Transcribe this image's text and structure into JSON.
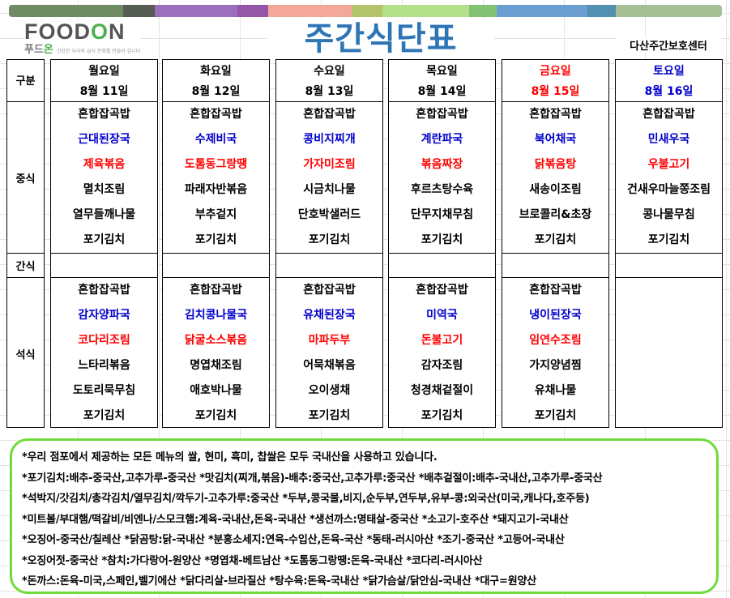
{
  "color_bar": [
    "#6e8b63",
    "#555d52",
    "#9b6fbd",
    "#9457a7",
    "#f4a89a",
    "#b4c46a",
    "#b3e08a",
    "#82c274",
    "#6b9fd1",
    "#538fb0",
    "#a7bf94"
  ],
  "logo": {
    "en_left": "FOOD",
    "en_o": "O",
    "en_right": "N",
    "ko_left": "푸드",
    "ko_right": "온",
    "tagline": "건강한 우리의 급식 문화를 만들어 갑니다"
  },
  "title": "주간식단표",
  "center_name": "다산주간보호센터",
  "labels": {
    "category": "구분",
    "lunch": "중식",
    "snack": "간식",
    "dinner": "석식"
  },
  "colors": {
    "blue": "#0000cc",
    "red": "#ff0000",
    "title": "#2e75b6",
    "notes_border": "#6ddc3a"
  },
  "days": [
    {
      "day": "월요일",
      "date": "8월 11일",
      "color": "black",
      "lunch": [
        "혼합잡곡밥",
        "근대된장국",
        "제육볶음",
        "멸치조림",
        "열무들깨나물",
        "포기김치"
      ],
      "dinner": [
        "혼합잡곡밥",
        "감자양파국",
        "코다리조림",
        "느타리볶음",
        "도토리묵무침",
        "포기김치"
      ]
    },
    {
      "day": "화요일",
      "date": "8월 12일",
      "color": "black",
      "lunch": [
        "혼합잡곡밥",
        "수제비국",
        "도톰동그랑땡",
        "파래자반볶음",
        "부추겉지",
        "포기김치"
      ],
      "dinner": [
        "혼합잡곡밥",
        "김치콩나물국",
        "닭굴소스볶음",
        "명엽채조림",
        "애호박나물",
        "포기김치"
      ]
    },
    {
      "day": "수요일",
      "date": "8월 13일",
      "color": "black",
      "lunch": [
        "혼합잡곡밥",
        "콩비지찌개",
        "가자미조림",
        "시금치나물",
        "단호박샐러드",
        "포기김치"
      ],
      "dinner": [
        "혼합잡곡밥",
        "유채된장국",
        "마파두부",
        "어묵채볶음",
        "오이생채",
        "포기김치"
      ]
    },
    {
      "day": "목요일",
      "date": "8월 14일",
      "color": "black",
      "lunch": [
        "혼합잡곡밥",
        "계란파국",
        "볶음짜장",
        "후르츠탕수육",
        "단무지채무침",
        "포기김치"
      ],
      "dinner": [
        "혼합잡곡밥",
        "미역국",
        "돈불고기",
        "감자조림",
        "청경채겉절이",
        "포기김치"
      ]
    },
    {
      "day": "금요일",
      "date": "8월 15일",
      "color": "red",
      "lunch": [
        "혼합잡곡밥",
        "북어채국",
        "닭볶음탕",
        "새송이조림",
        "브로콜리&초장",
        "포기김치"
      ],
      "dinner": [
        "혼합잡곡밥",
        "냉이된장국",
        "임연수조림",
        "가지양념찜",
        "유채나물",
        "포기김치"
      ]
    },
    {
      "day": "토요일",
      "date": "8월 16일",
      "color": "blue",
      "lunch": [
        "혼합잡곡밥",
        "민새우국",
        "우불고기",
        "건새우마늘쫑조림",
        "콩나물무침",
        "포기김치"
      ],
      "dinner": []
    }
  ],
  "item_colors": [
    "black",
    "blue",
    "red",
    "black",
    "black",
    "black"
  ],
  "notes": [
    "*우리 점포에서 제공하는 모든 메뉴의 쌀, 현미, 흑미, 찹쌀은 모두 국내산을 사용하고 있습니다.",
    "*포기김치:배추-중국산,고추가루-중국산  *맛김치(찌개,볶음)-배추:중국산,고추가루:중국산  *배추겉절이:배추-국내산,고추가루-중국산",
    "*석박지/갓김치/총각김치/열무김치/깍두기-고추가루:중국산  *두부,콩국물,비지,순두부,연두부,유부-콩:외국산(미국,캐나다,호주등)",
    "*미트볼/부대햄/떡갈비/비엔나/스모크햄:계육-국내산,돈육-국내산  *생선까스:명태살-중국산  *소고기-호주산  *돼지고기-국내산",
    "*오징어-중국산/칠레산  *닭곰탕:닭-국내산  *분홍소세지:연육-수입산,돈육-국산  *동태-러시아산  *조기-중국산  *고등어-국내산",
    "*오징어젓-중국산  *참치:가다랑어-원양산  *명엽채-베트남산  *도톰동그랑땡:돈육-국내산  *코다리-러시아산",
    "*돈까스:돈육-미국,스페인,벨기에산  *닭다리살-브라질산  *탕수육:돈육-국내산  *닭가슴살/닭안심-국내산  *대구=원양산"
  ]
}
